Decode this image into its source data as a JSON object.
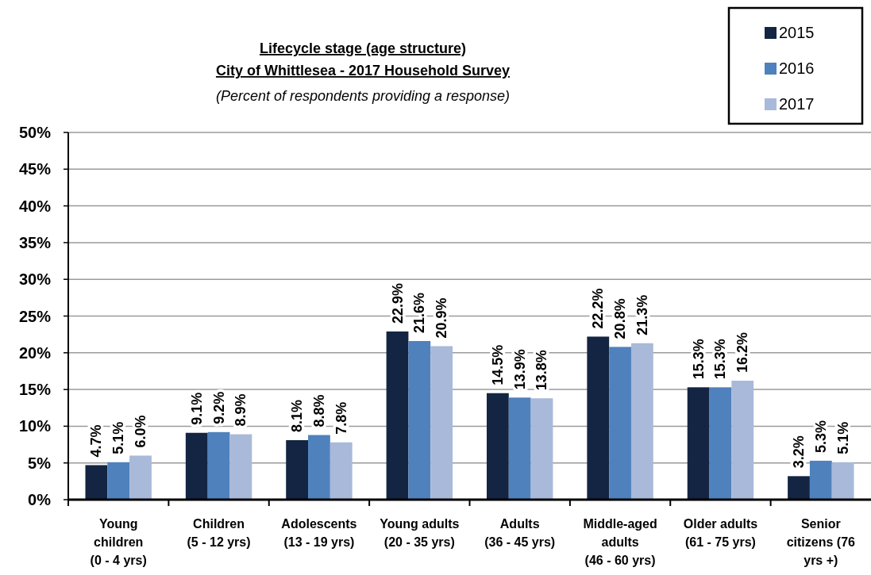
{
  "chart_data": {
    "type": "bar",
    "title": "Lifecycle stage (age structure)\nCity of Whittlesea - 2017 Household Survey",
    "subtitle": "(Percent of respondents providing a response)",
    "categories": [
      "Young children\n(0 - 4 yrs)",
      "Children\n(5 - 12 yrs)",
      "Adolescents\n(13 - 19 yrs)",
      "Young adults\n(20 - 35 yrs)",
      "Adults\n(36 - 45 yrs)",
      "Middle-aged adults\n(46 - 60 yrs)",
      "Older adults\n(61 - 75 yrs)",
      "Senior citizens (76 yrs +)"
    ],
    "series": [
      {
        "name": "2015",
        "color": "#132542",
        "values": [
          4.7,
          9.1,
          8.1,
          22.9,
          14.5,
          22.2,
          15.3,
          3.2
        ],
        "value_labels": [
          "4.7%",
          "9.1%",
          "8.1%",
          "22.9%",
          "14.5%",
          "22.2%",
          "15.3%",
          "3.2%"
        ]
      },
      {
        "name": "2016",
        "color": "#4f81bd",
        "values": [
          5.1,
          9.2,
          8.8,
          21.6,
          13.9,
          20.8,
          15.3,
          5.3
        ],
        "value_labels": [
          "5.1%",
          "9.2%",
          "8.8%",
          "21.6%",
          "13.9%",
          "20.8%",
          "15.3%",
          "5.3%"
        ]
      },
      {
        "name": "2017",
        "color": "#a9b9d9",
        "values": [
          6.0,
          8.9,
          7.8,
          20.9,
          13.8,
          21.3,
          16.2,
          5.1
        ],
        "value_labels": [
          "6.0%",
          "8.9%",
          "7.8%",
          "20.9%",
          "13.8%",
          "21.3%",
          "16.2%",
          "5.1%"
        ]
      }
    ],
    "ylim": [
      0,
      50
    ],
    "yticks": [
      {
        "value": 0,
        "label": "0%"
      },
      {
        "value": 5,
        "label": "5%"
      },
      {
        "value": 10,
        "label": "10%"
      },
      {
        "value": 15,
        "label": "15%"
      },
      {
        "value": 20,
        "label": "20%"
      },
      {
        "value": 25,
        "label": "25%"
      },
      {
        "value": 30,
        "label": "30%"
      },
      {
        "value": 35,
        "label": "35%"
      },
      {
        "value": 40,
        "label": "40%"
      },
      {
        "value": 45,
        "label": "45%"
      },
      {
        "value": 50,
        "label": "50%"
      }
    ],
    "grid": "y",
    "legend": "top right"
  }
}
